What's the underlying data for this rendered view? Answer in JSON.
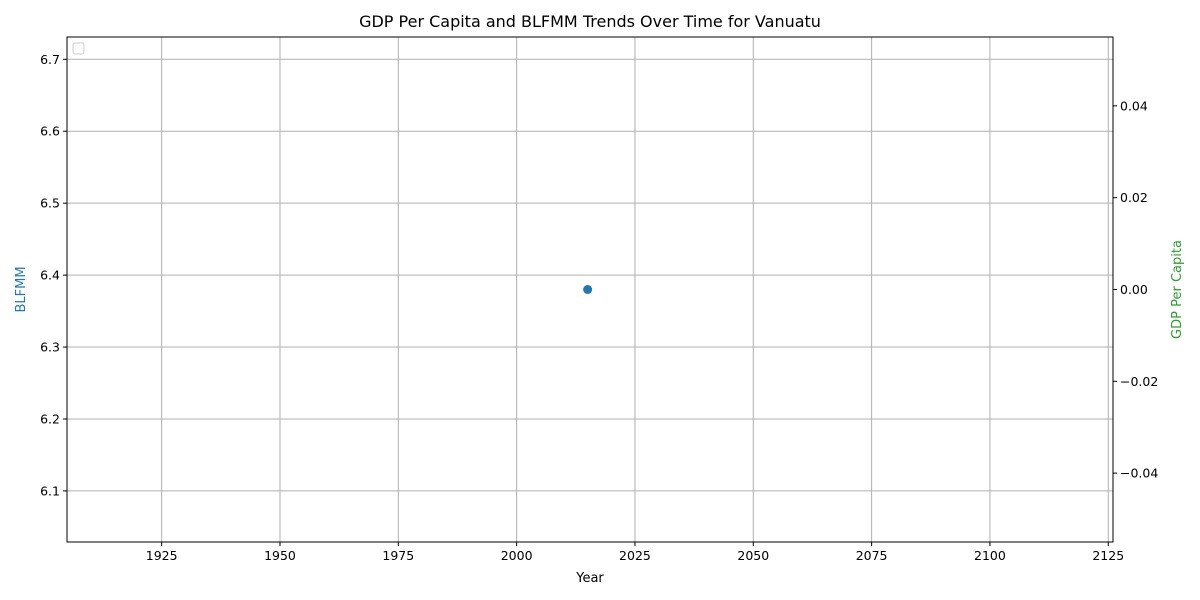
{
  "chart_data": {
    "type": "scatter",
    "title": "GDP Per Capita and BLFMM Trends Over Time for Vanuatu",
    "xlabel": "Year",
    "ylabel_left": "BLFMM",
    "ylabel_right": "GDP Per Capita",
    "xlim": [
      1905,
      2126
    ],
    "ylim_left": [
      6.029,
      6.731
    ],
    "ylim_right": [
      -0.055,
      0.055
    ],
    "x_ticks": [
      1925,
      1950,
      1975,
      2000,
      2025,
      2050,
      2075,
      2100,
      2125
    ],
    "y_ticks_left": [
      6.1,
      6.2,
      6.3,
      6.4,
      6.5,
      6.6,
      6.7
    ],
    "y_ticks_left_labels": [
      "6.1",
      "6.2",
      "6.3",
      "6.4",
      "6.5",
      "6.6",
      "6.7"
    ],
    "y_ticks_right": [
      -0.04,
      -0.02,
      0.0,
      0.02,
      0.04
    ],
    "y_ticks_right_labels": [
      "−0.04",
      "−0.02",
      "0.00",
      "0.02",
      "0.04"
    ],
    "grid": true,
    "legend": "top-left (empty)",
    "series": [
      {
        "axis": "left",
        "color": "#1f77b4",
        "x": [
          2015
        ],
        "y": [
          6.38
        ]
      },
      {
        "axis": "right",
        "color": "#2ca02c",
        "x": [],
        "y": []
      }
    ],
    "colors": {
      "left_axis": "#1f77b4",
      "right_axis": "#2ca02c",
      "grid": "#b0b0b0"
    }
  }
}
